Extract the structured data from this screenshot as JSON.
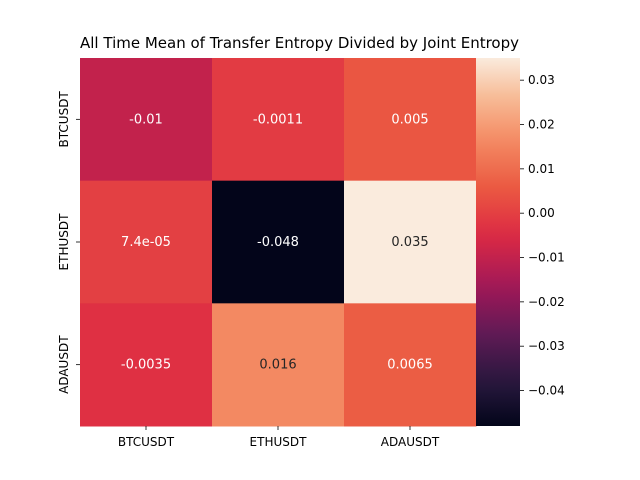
{
  "chart_data": {
    "type": "heatmap",
    "title": "All Time Mean of Transfer Entropy Divided by Joint Entropy",
    "x_categories": [
      "BTCUSDT",
      "ETHUSDT",
      "ADAUSDT"
    ],
    "y_categories": [
      "BTCUSDT",
      "ETHUSDT",
      "ADAUSDT"
    ],
    "values": [
      [
        -0.01,
        -0.0011,
        0.005
      ],
      [
        7.4e-05,
        -0.048,
        0.035
      ],
      [
        -0.0035,
        0.016,
        0.0065
      ]
    ],
    "value_labels": [
      [
        "-0.01",
        "-0.0011",
        "0.005"
      ],
      [
        "7.4e-05",
        "-0.048",
        "0.035"
      ],
      [
        "-0.0035",
        "0.016",
        "0.0065"
      ]
    ],
    "colorbar": {
      "range": [
        -0.048,
        0.035
      ],
      "ticks": [
        0.03,
        0.02,
        0.01,
        0.0,
        -0.01,
        -0.02,
        -0.03,
        -0.04
      ],
      "tick_labels": [
        "0.03",
        "0.02",
        "0.01",
        "0.00",
        "−0.01",
        "−0.02",
        "−0.03",
        "−0.04"
      ]
    },
    "colormap": "rocket",
    "xlabel": "",
    "ylabel": ""
  }
}
